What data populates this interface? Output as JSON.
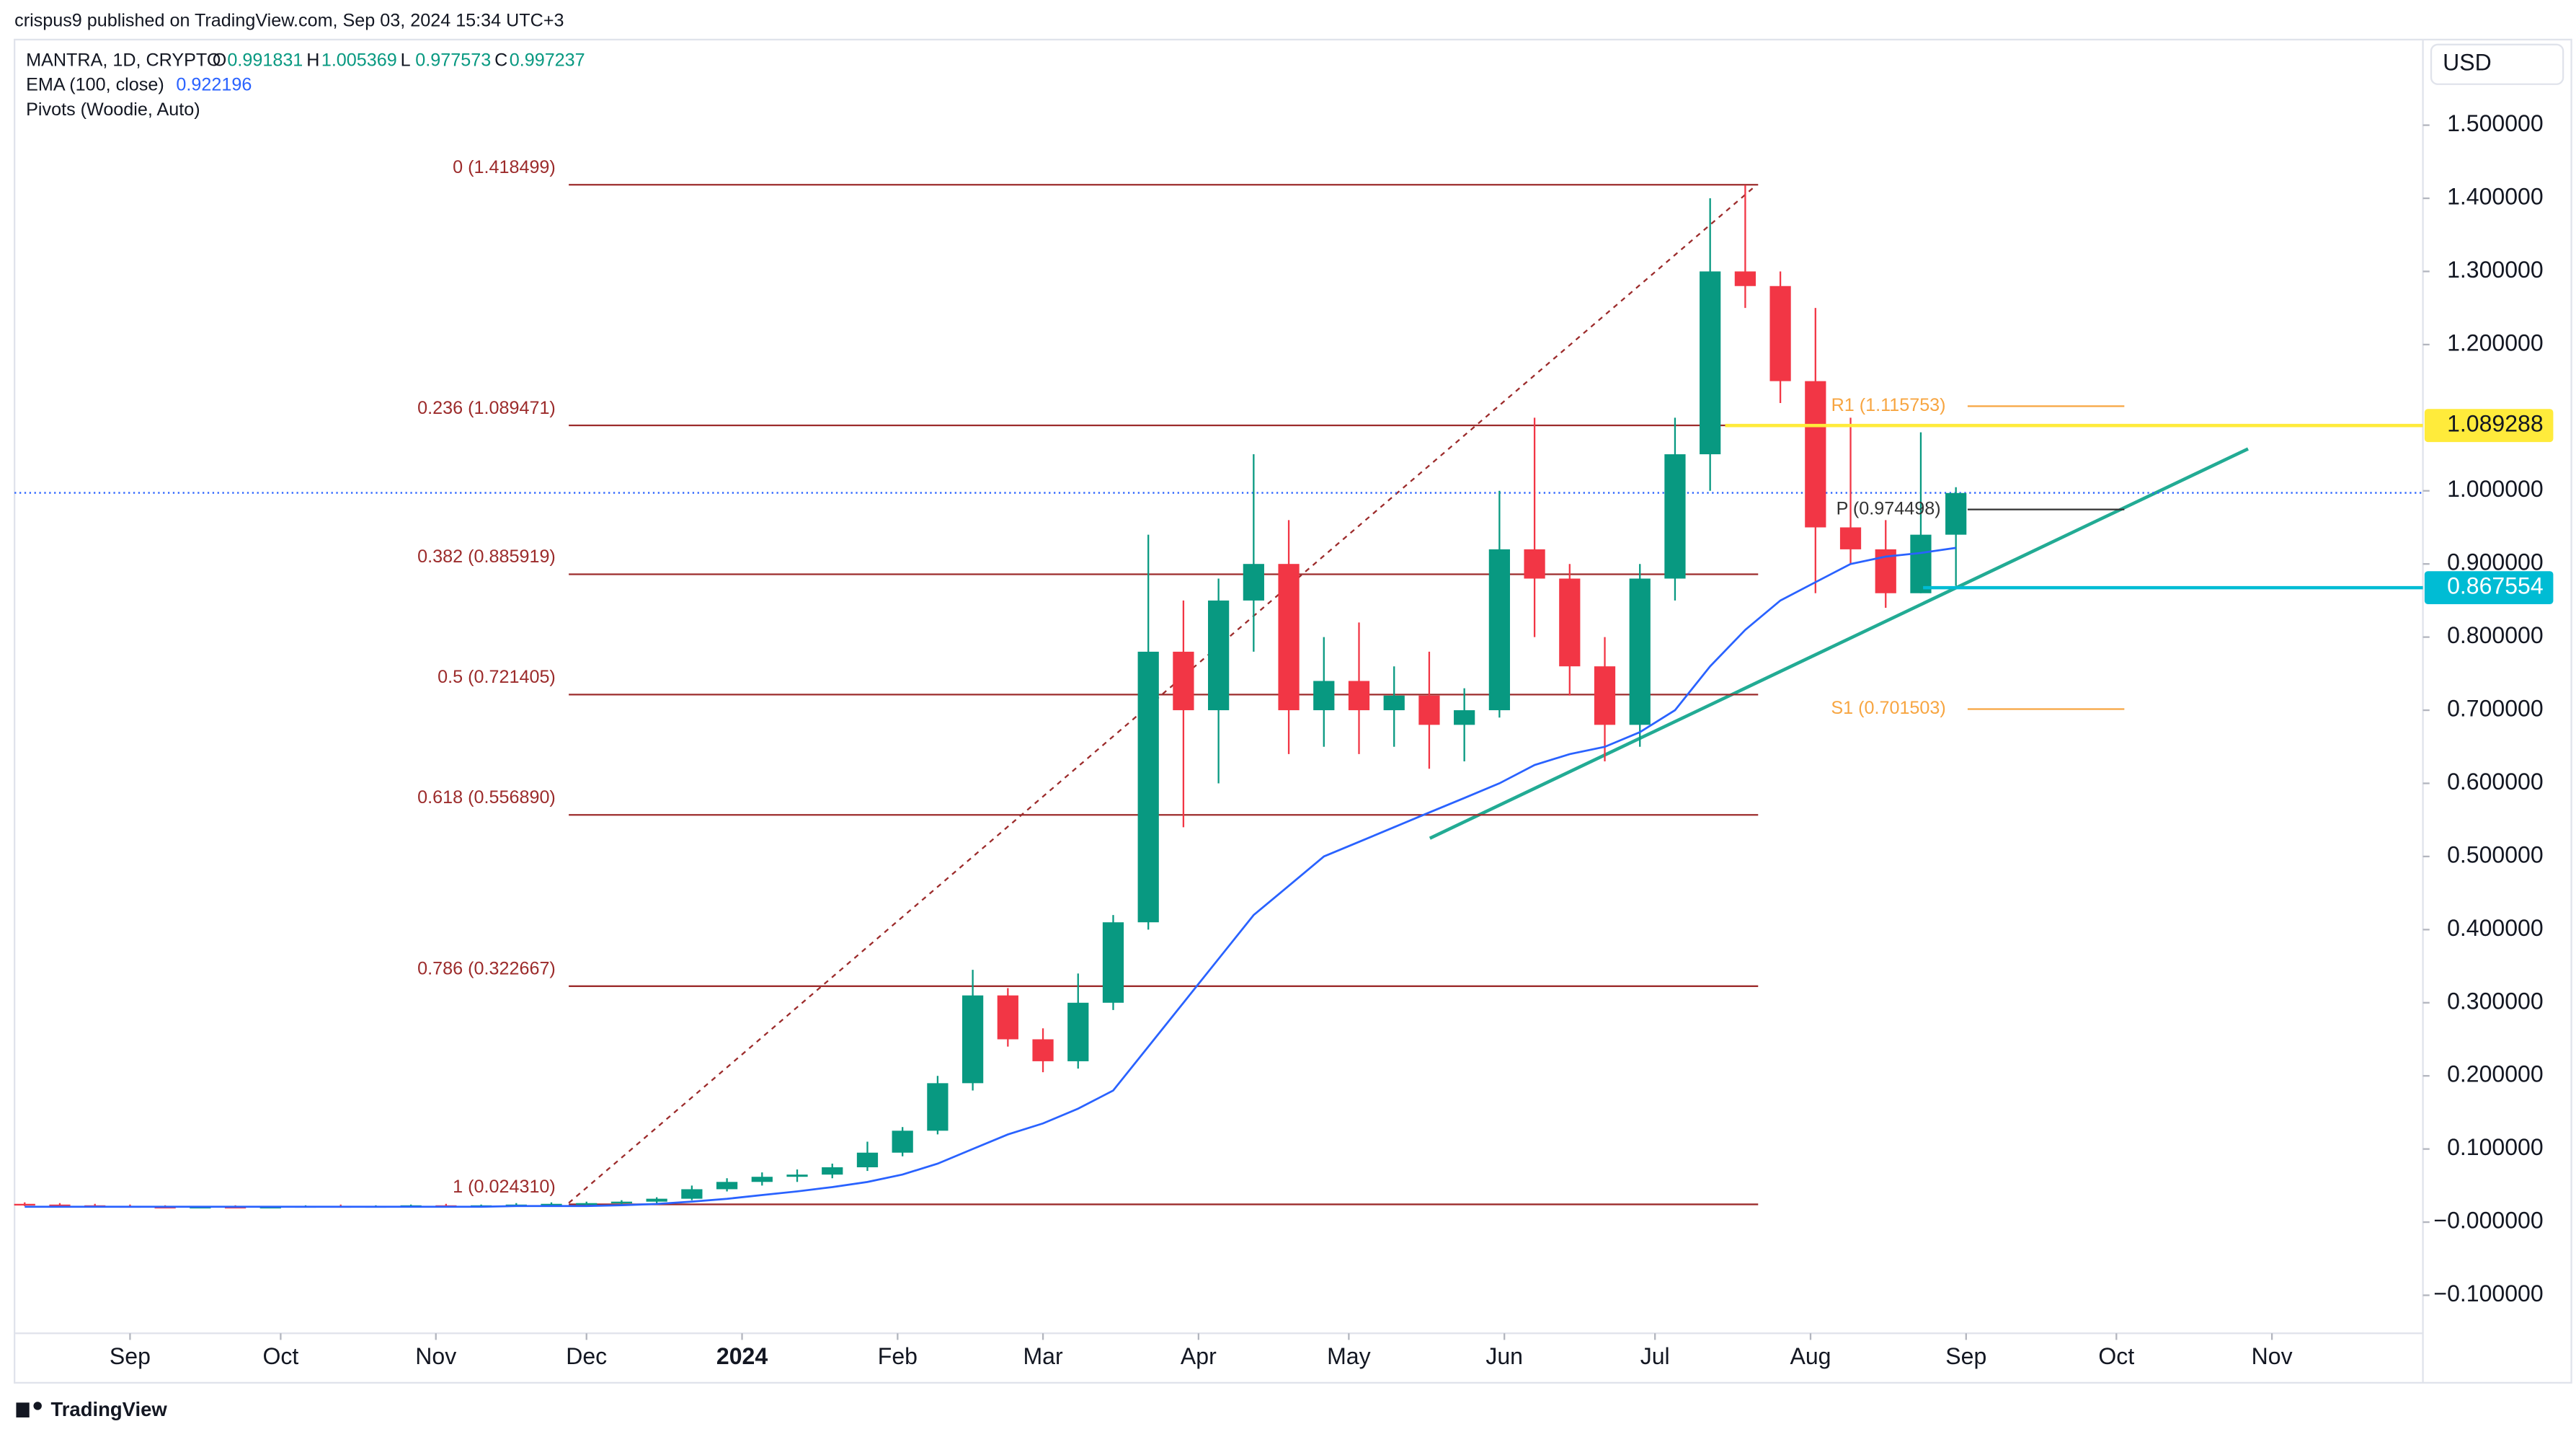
{
  "header": {
    "published": "crispus9 published on TradingView.com, Sep 03, 2024 15:34 UTC+3"
  },
  "legend": {
    "symbol": "MANTRA, 1D, CRYPTO",
    "ohlc": [
      {
        "key": "O",
        "value": 0.991831
      },
      {
        "key": "H",
        "value": 1.005369
      },
      {
        "key": "L",
        "value": 0.977573
      },
      {
        "key": "C",
        "value": 0.997237
      }
    ],
    "ema": {
      "name": "EMA (100, close)",
      "value": 0.922196
    },
    "pivots": "Pivots (Woodie, Auto)"
  },
  "footer": {
    "brand": "TradingView"
  },
  "chart_data": {
    "type": "candlestick",
    "currency": "USD",
    "up_color": "#089981",
    "down_color": "#f23645",
    "xlim": [
      -0.29,
      68.3
    ],
    "xticks": [
      {
        "value": 3,
        "label": "Sep"
      },
      {
        "value": 7.29,
        "label": "Oct"
      },
      {
        "value": 11.71,
        "label": "Nov"
      },
      {
        "value": 16,
        "label": "Dec"
      },
      {
        "value": 20.43,
        "label": "2024"
      },
      {
        "value": 24.86,
        "label": "Feb"
      },
      {
        "value": 29,
        "label": "Mar"
      },
      {
        "value": 33.43,
        "label": "Apr"
      },
      {
        "value": 37.71,
        "label": "May"
      },
      {
        "value": 42.14,
        "label": "Jun"
      },
      {
        "value": 46.43,
        "label": "Jul"
      },
      {
        "value": 50.86,
        "label": "Aug"
      },
      {
        "value": 55.29,
        "label": "Sep"
      },
      {
        "value": 59.57,
        "label": "Oct"
      },
      {
        "value": 64,
        "label": "Nov"
      }
    ],
    "ylim": [
      -0.152,
      1.617
    ],
    "yticks": [
      {
        "value": 1.5,
        "label": "1.500000"
      },
      {
        "value": 1.4,
        "label": "1.400000"
      },
      {
        "value": 1.3,
        "label": "1.300000"
      },
      {
        "value": 1.2,
        "label": "1.200000"
      },
      {
        "value": 1.0,
        "label": "1.000000"
      },
      {
        "value": 0.9,
        "label": "0.900000"
      },
      {
        "value": 0.8,
        "label": "0.800000"
      },
      {
        "value": 0.7,
        "label": "0.700000"
      },
      {
        "value": 0.6,
        "label": "0.600000"
      },
      {
        "value": 0.5,
        "label": "0.500000"
      },
      {
        "value": 0.4,
        "label": "0.400000"
      },
      {
        "value": 0.3,
        "label": "0.300000"
      },
      {
        "value": 0.2,
        "label": "0.200000"
      },
      {
        "value": 0.1,
        "label": "0.100000"
      },
      {
        "value": 0,
        "label": "−0.000000"
      },
      {
        "value": -0.1,
        "label": "−0.100000"
      }
    ],
    "open": [
      0.025,
      0.024,
      0.023,
      0.022,
      0.021,
      0.02,
      0.021,
      0.02,
      0.021,
      0.022,
      0.021,
      0.022,
      0.023,
      0.022,
      0.023,
      0.024,
      0.025,
      0.026,
      0.028,
      0.032,
      0.045,
      0.055,
      0.062,
      0.065,
      0.075,
      0.095,
      0.125,
      0.19,
      0.31,
      0.25,
      0.22,
      0.3,
      0.41,
      0.78,
      0.7,
      0.85,
      0.9,
      0.7,
      0.74,
      0.7,
      0.72,
      0.68,
      0.7,
      0.92,
      0.88,
      0.76,
      0.68,
      0.88,
      1.05,
      1.3,
      1.28,
      1.15,
      0.95,
      0.92,
      0.86,
      0.94
    ],
    "high": [
      0.027,
      0.026,
      0.025,
      0.024,
      0.023,
      0.022,
      0.023,
      0.022,
      0.023,
      0.024,
      0.023,
      0.024,
      0.025,
      0.024,
      0.026,
      0.027,
      0.028,
      0.03,
      0.034,
      0.05,
      0.06,
      0.068,
      0.072,
      0.08,
      0.11,
      0.13,
      0.2,
      0.345,
      0.32,
      0.265,
      0.34,
      0.42,
      0.94,
      0.85,
      0.88,
      1.05,
      0.96,
      0.8,
      0.82,
      0.76,
      0.78,
      0.73,
      1.0,
      1.1,
      0.9,
      0.8,
      0.9,
      1.1,
      1.4,
      1.418,
      1.3,
      1.25,
      1.1,
      0.96,
      1.08,
      1.005
    ],
    "low": [
      0.022,
      0.022,
      0.021,
      0.02,
      0.019,
      0.019,
      0.019,
      0.019,
      0.02,
      0.02,
      0.02,
      0.021,
      0.021,
      0.021,
      0.022,
      0.022,
      0.023,
      0.024,
      0.026,
      0.03,
      0.042,
      0.05,
      0.055,
      0.06,
      0.07,
      0.09,
      0.12,
      0.18,
      0.24,
      0.205,
      0.21,
      0.29,
      0.4,
      0.54,
      0.6,
      0.78,
      0.64,
      0.65,
      0.64,
      0.65,
      0.62,
      0.63,
      0.69,
      0.8,
      0.72,
      0.63,
      0.65,
      0.85,
      1.0,
      1.25,
      1.12,
      0.86,
      0.9,
      0.84,
      0.86,
      0.87
    ],
    "close": [
      0.024,
      0.023,
      0.022,
      0.021,
      0.02,
      0.021,
      0.02,
      0.021,
      0.022,
      0.021,
      0.022,
      0.023,
      0.022,
      0.023,
      0.024,
      0.025,
      0.026,
      0.028,
      0.032,
      0.045,
      0.055,
      0.062,
      0.065,
      0.075,
      0.095,
      0.125,
      0.19,
      0.31,
      0.25,
      0.22,
      0.3,
      0.41,
      0.78,
      0.7,
      0.85,
      0.9,
      0.7,
      0.74,
      0.7,
      0.72,
      0.68,
      0.7,
      0.92,
      0.88,
      0.76,
      0.68,
      0.88,
      1.05,
      1.3,
      1.28,
      1.15,
      0.95,
      0.92,
      0.86,
      0.94,
      0.997
    ],
    "ema": {
      "color": "#2962ff",
      "values": [
        0.021,
        0.021,
        0.021,
        0.021,
        0.021,
        0.021,
        0.021,
        0.021,
        0.021,
        0.021,
        0.021,
        0.021,
        0.021,
        0.021,
        0.022,
        0.022,
        0.022,
        0.023,
        0.025,
        0.028,
        0.032,
        0.037,
        0.042,
        0.048,
        0.055,
        0.065,
        0.08,
        0.1,
        0.12,
        0.135,
        0.155,
        0.18,
        0.24,
        0.3,
        0.36,
        0.42,
        0.46,
        0.5,
        0.52,
        0.54,
        0.56,
        0.58,
        0.6,
        0.625,
        0.64,
        0.65,
        0.67,
        0.7,
        0.76,
        0.81,
        0.85,
        0.875,
        0.9,
        0.91,
        0.915,
        0.922
      ]
    },
    "fib_color": "#9c2b2b",
    "fib_levels": [
      {
        "label": "0 (1.418499)",
        "value": 1.418499
      },
      {
        "label": "0.236 (1.089471)",
        "value": 1.089471
      },
      {
        "label": "0.382 (0.885919)",
        "value": 0.885919
      },
      {
        "label": "0.5 (0.721405)",
        "value": 0.721405
      },
      {
        "label": "0.618 (0.556890)",
        "value": 0.55689
      },
      {
        "label": "0.786 (0.322667)",
        "value": 0.322667
      },
      {
        "label": "1 (0.024310)",
        "value": 0.02431
      }
    ],
    "pivots": [
      {
        "label": "R1 (1.115753)",
        "value": 1.115753,
        "color": "#f7a541"
      },
      {
        "label": "P (0.974498)",
        "value": 0.974498,
        "color": "#333333"
      },
      {
        "label": "S1 (0.701503)",
        "value": 0.701503,
        "color": "#f7a541"
      }
    ],
    "price_line": {
      "value": 0.997237,
      "color": "#2962ff"
    },
    "markers": [
      {
        "label": "1.089288",
        "value": 1.089288,
        "color": "#ffeb3b"
      },
      {
        "label": "0.867554",
        "value": 0.867554,
        "color": "#00bcd4"
      }
    ]
  }
}
